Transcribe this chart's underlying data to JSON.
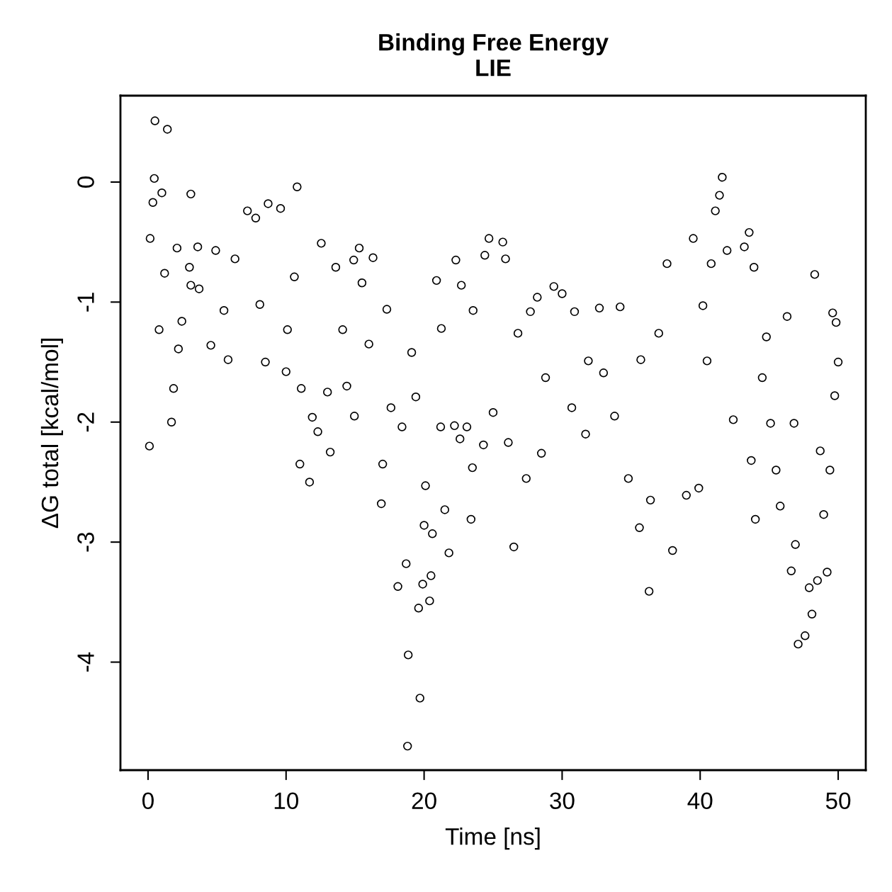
{
  "chart_data": {
    "type": "scatter",
    "title": "Binding Free Energy\nLIE",
    "xlabel": "Time [ns]",
    "ylabel": "ΔG total [kcal/mol]",
    "xlim": [
      -2,
      52
    ],
    "ylim": [
      -4.9,
      0.72
    ],
    "xticks": [
      0,
      10,
      20,
      30,
      40,
      50
    ],
    "yticks": [
      0,
      -1,
      -2,
      -3,
      -4
    ],
    "grid": false,
    "legend": false,
    "marker": "circle",
    "series": [
      {
        "color": "#000000",
        "x": [
          0.1,
          0.15,
          0.5,
          0.45,
          0.35,
          1.0,
          1.4,
          0.8,
          1.2,
          1.7,
          1.85,
          2.1,
          2.2,
          2.45,
          3.1,
          3.0,
          3.1,
          3.6,
          3.7,
          4.55,
          4.9,
          5.5,
          5.8,
          6.3,
          7.2,
          7.8,
          8.7,
          8.1,
          8.5,
          9.6,
          10.0,
          10.1,
          10.8,
          10.6,
          11.0,
          11.7,
          11.1,
          11.9,
          12.3,
          12.55,
          13.2,
          13.6,
          13.0,
          14.1,
          14.4,
          14.9,
          14.95,
          15.3,
          15.5,
          16.3,
          16.0,
          16.9,
          17.0,
          17.3,
          17.6,
          18.1,
          18.4,
          18.7,
          18.8,
          18.85,
          19.1,
          19.4,
          19.6,
          19.7,
          19.9,
          20.0,
          20.1,
          20.4,
          20.5,
          20.6,
          20.9,
          21.2,
          21.25,
          21.5,
          21.8,
          22.2,
          22.3,
          22.6,
          22.7,
          23.1,
          23.4,
          23.5,
          23.55,
          24.3,
          24.4,
          24.7,
          25.0,
          25.7,
          25.9,
          26.1,
          26.5,
          26.8,
          27.4,
          27.7,
          28.2,
          28.5,
          28.8,
          29.4,
          30.0,
          30.7,
          30.9,
          31.7,
          31.9,
          32.7,
          33.0,
          33.8,
          34.2,
          34.8,
          35.6,
          35.7,
          36.3,
          36.4,
          37.0,
          37.6,
          38.0,
          39.5,
          39.0,
          39.9,
          40.2,
          40.5,
          40.8,
          41.1,
          41.4,
          41.6,
          41.95,
          42.4,
          43.2,
          43.55,
          43.9,
          43.7,
          44.0,
          44.5,
          44.8,
          45.1,
          45.5,
          45.8,
          46.3,
          46.6,
          46.8,
          46.9,
          47.1,
          47.6,
          47.9,
          48.1,
          48.3,
          48.5,
          48.7,
          48.95,
          49.2,
          49.4,
          49.6,
          49.85,
          50.0,
          49.75
        ],
        "values": [
          -2.2,
          -0.47,
          0.51,
          0.03,
          -0.17,
          -0.09,
          0.44,
          -1.23,
          -0.76,
          -2.0,
          -1.72,
          -0.55,
          -1.39,
          -1.16,
          -0.1,
          -0.71,
          -0.86,
          -0.54,
          -0.89,
          -1.36,
          -0.57,
          -1.07,
          -1.48,
          -0.64,
          -0.24,
          -0.3,
          -0.18,
          -1.02,
          -1.5,
          -0.22,
          -1.58,
          -1.23,
          -0.04,
          -0.79,
          -2.35,
          -2.5,
          -1.72,
          -1.96,
          -2.08,
          -0.51,
          -2.25,
          -0.71,
          -1.75,
          -1.23,
          -1.7,
          -0.65,
          -1.95,
          -0.55,
          -0.84,
          -0.63,
          -1.35,
          -2.68,
          -2.35,
          -1.06,
          -1.88,
          -3.37,
          -2.04,
          -3.18,
          -4.7,
          -3.94,
          -1.42,
          -1.79,
          -3.55,
          -4.3,
          -3.35,
          -2.86,
          -2.53,
          -3.49,
          -3.28,
          -2.93,
          -0.82,
          -2.04,
          -1.22,
          -2.73,
          -3.09,
          -2.03,
          -0.65,
          -2.14,
          -0.86,
          -2.04,
          -2.81,
          -2.38,
          -1.07,
          -2.19,
          -0.61,
          -0.47,
          -1.92,
          -0.5,
          -0.64,
          -2.17,
          -3.04,
          -1.26,
          -2.47,
          -1.08,
          -0.96,
          -2.26,
          -1.63,
          -0.87,
          -0.93,
          -1.88,
          -1.08,
          -2.1,
          -1.49,
          -1.05,
          -1.59,
          -1.95,
          -1.04,
          -2.47,
          -2.88,
          -1.48,
          -3.41,
          -2.65,
          -1.26,
          -0.68,
          -3.07,
          -0.47,
          -2.61,
          -2.55,
          -1.03,
          -1.49,
          -0.68,
          -0.24,
          -0.11,
          0.04,
          -0.57,
          -1.98,
          -0.54,
          -0.42,
          -0.71,
          -2.32,
          -2.81,
          -1.63,
          -1.29,
          -2.01,
          -2.4,
          -2.7,
          -1.12,
          -3.24,
          -2.01,
          -3.02,
          -3.85,
          -3.78,
          -3.38,
          -3.6,
          -0.77,
          -3.32,
          -2.24,
          -2.77,
          -3.25,
          -2.4,
          -1.09,
          -1.17,
          -1.5,
          -1.78
        ]
      }
    ]
  }
}
